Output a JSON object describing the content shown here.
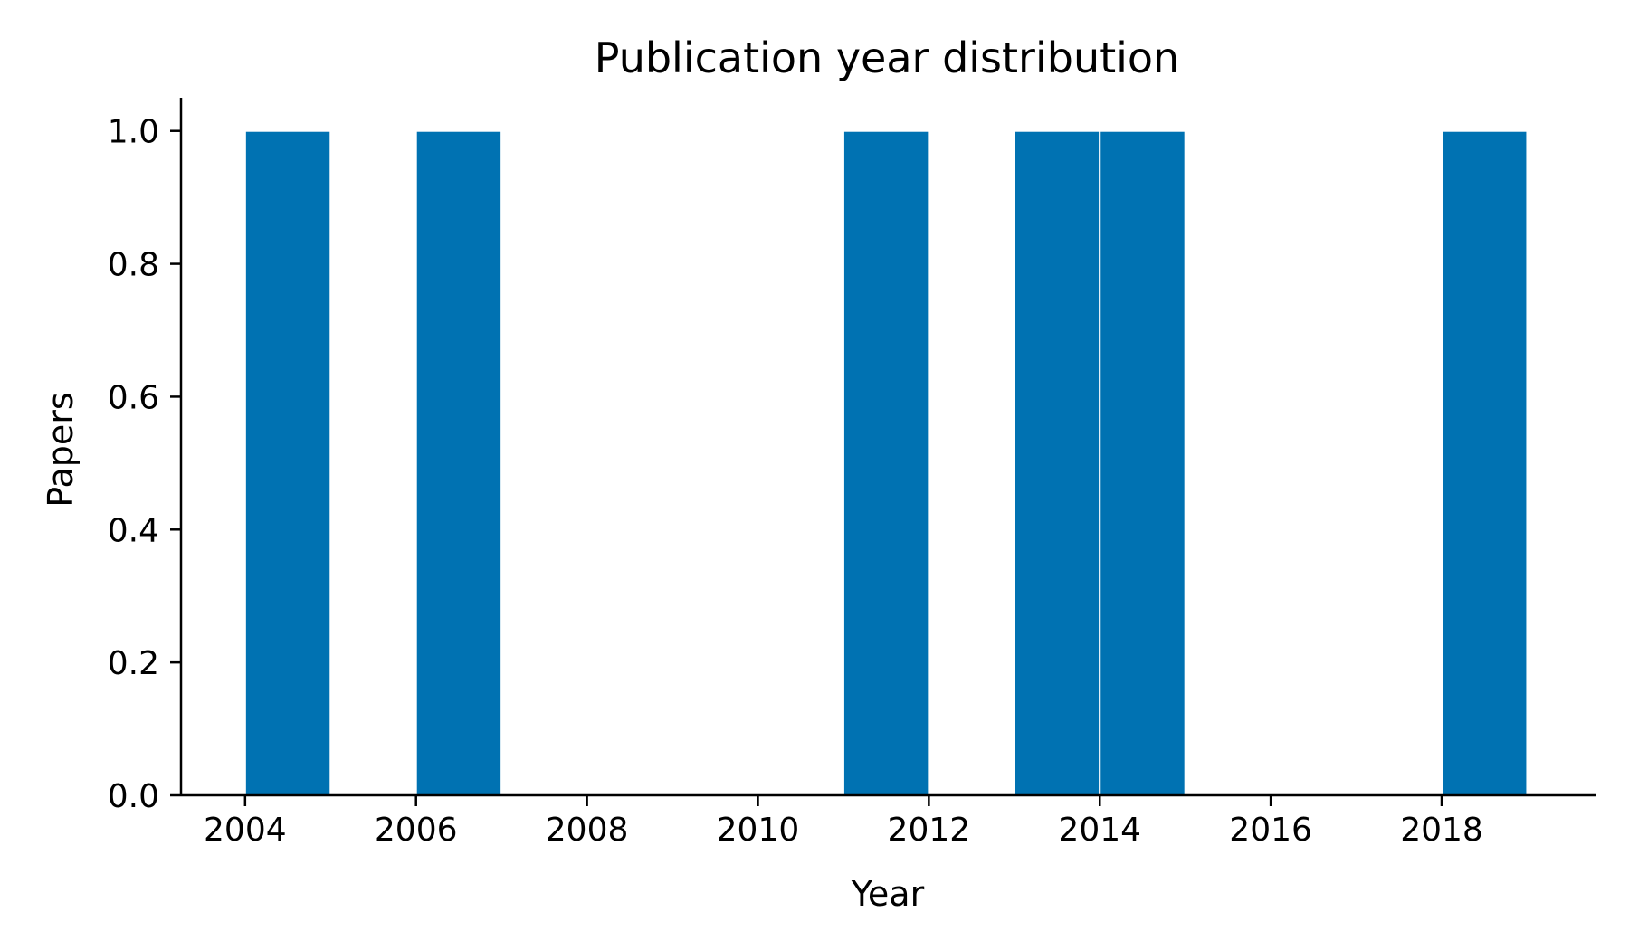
{
  "chart_data": {
    "type": "bar",
    "title": "Publication year distribution",
    "xlabel": "Year",
    "ylabel": "Papers",
    "bar_color": "#0072b2",
    "edge_color": "#ffffff",
    "xlim": [
      2003.25,
      2019.8
    ],
    "ylim": [
      0,
      1.05
    ],
    "x_ticks": [
      2004,
      2006,
      2008,
      2010,
      2012,
      2014,
      2016,
      2018
    ],
    "x_tick_labels": [
      "2004",
      "2006",
      "2008",
      "2010",
      "2012",
      "2014",
      "2016",
      "2018"
    ],
    "y_ticks": [
      0.0,
      0.2,
      0.4,
      0.6,
      0.8,
      1.0
    ],
    "y_tick_labels": [
      "0.0",
      "0.2",
      "0.4",
      "0.6",
      "0.8",
      "1.0"
    ],
    "bins": [
      {
        "start": 2004,
        "end": 2005,
        "value": 1
      },
      {
        "start": 2006,
        "end": 2007,
        "value": 1
      },
      {
        "start": 2011,
        "end": 2012,
        "value": 1
      },
      {
        "start": 2013,
        "end": 2014,
        "value": 1
      },
      {
        "start": 2014,
        "end": 2015,
        "value": 1
      },
      {
        "start": 2018,
        "end": 2019,
        "value": 1
      }
    ],
    "grid": false,
    "legend": "none"
  }
}
